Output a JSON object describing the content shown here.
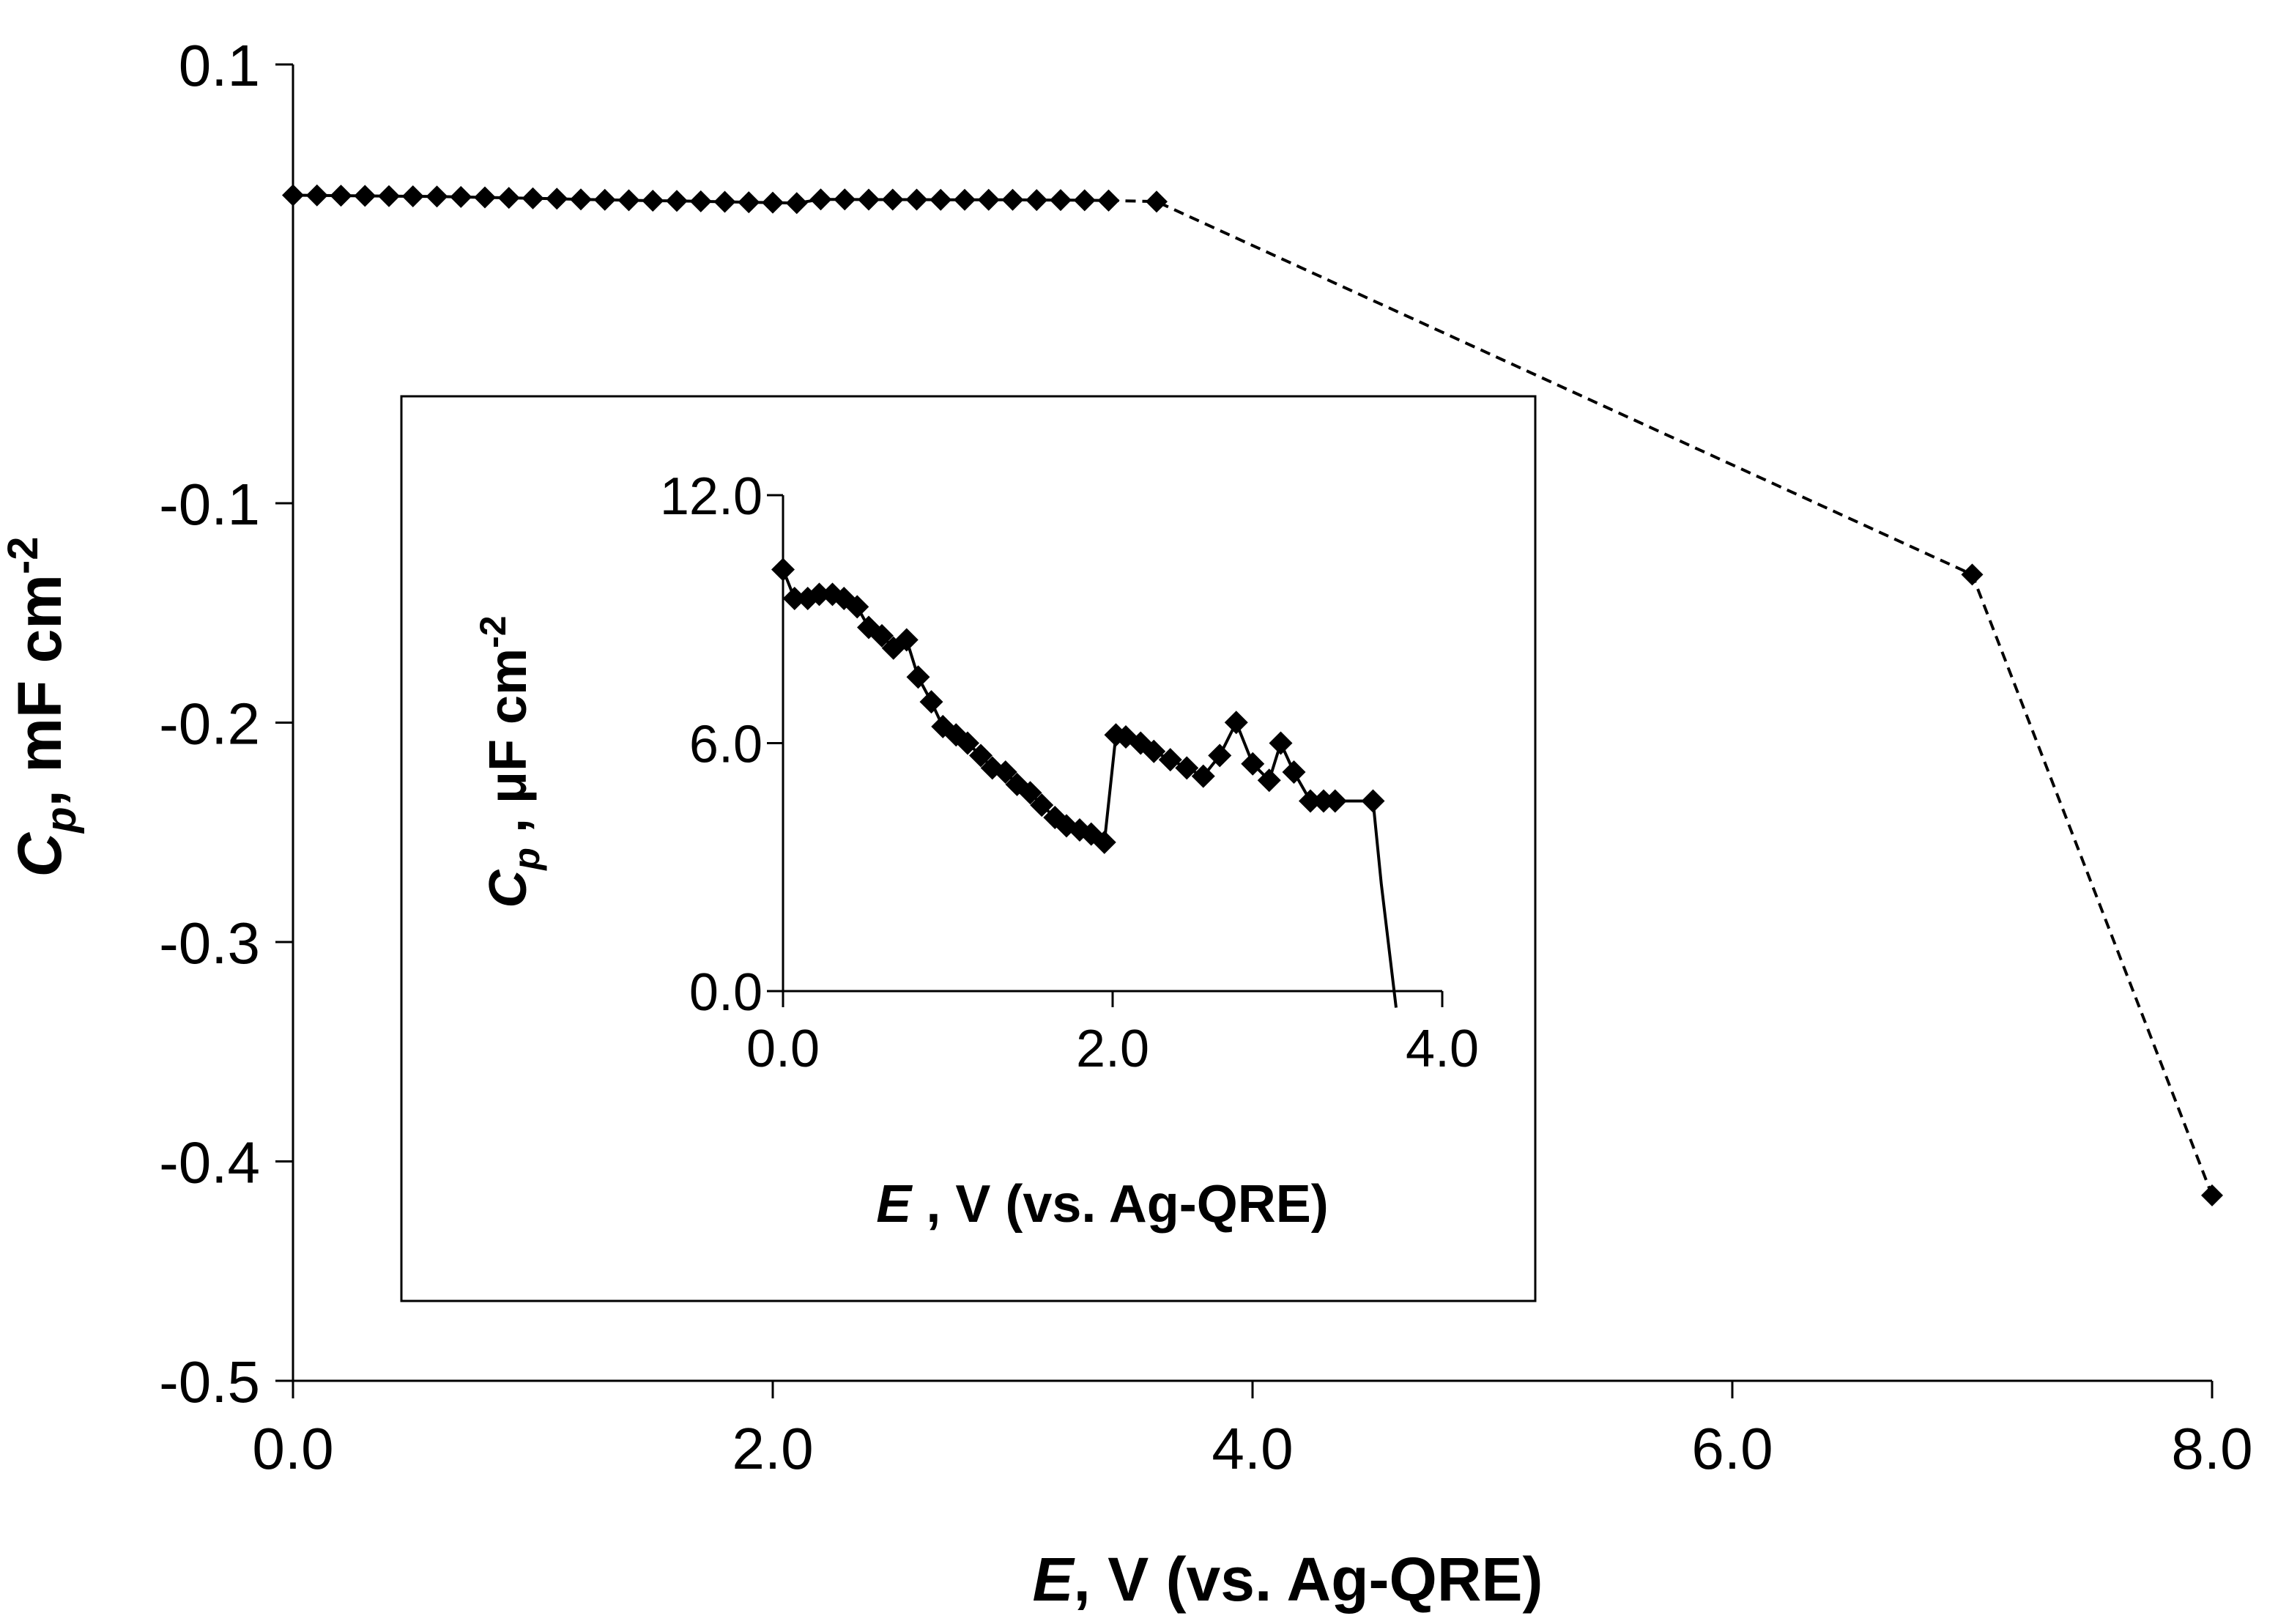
{
  "chart_data": [
    {
      "type": "line",
      "name": "main",
      "xlim": [
        0,
        8
      ],
      "ylim": [
        -0.5,
        0.1
      ],
      "xticks": [
        "0.0",
        "2.0",
        "4.0",
        "6.0",
        "8.0"
      ],
      "yticks": [
        "0.1",
        "-0.1",
        "-0.2",
        "-0.3",
        "-0.4",
        "-0.5"
      ],
      "xlabel": {
        "var": "E",
        "rest": ", V (vs. Ag-QRE)"
      },
      "ylabel": {
        "var": "C",
        "sub": "p",
        "unit": ", mF cm",
        "sup": "-2"
      },
      "series": [
        {
          "name": "Cp",
          "marker": "diamond",
          "line": "solid",
          "x": [
            0.0,
            0.1,
            0.2,
            0.3,
            0.4,
            0.5,
            0.6,
            0.7,
            0.8,
            0.9,
            1.0,
            1.1,
            1.2,
            1.3,
            1.4,
            1.5,
            1.6,
            1.7,
            1.8,
            1.9,
            2.0,
            2.1,
            2.2,
            2.3,
            2.4,
            2.5,
            2.6,
            2.7,
            2.8,
            2.9,
            3.0,
            3.1,
            3.2,
            3.3,
            3.4
          ],
          "y": [
            0.0404,
            0.0403,
            0.0402,
            0.0401,
            0.04,
            0.0399,
            0.0398,
            0.0396,
            0.0394,
            0.0392,
            0.039,
            0.0388,
            0.0385,
            0.0383,
            0.0381,
            0.0379,
            0.0378,
            0.0376,
            0.0374,
            0.0372,
            0.037,
            0.0368,
            0.0385,
            0.0385,
            0.0384,
            0.0384,
            0.0384,
            0.0383,
            0.0383,
            0.0383,
            0.0383,
            0.0382,
            0.0382,
            0.0381,
            0.038
          ]
        },
        {
          "name": "Cp-extended",
          "marker": "diamond",
          "line": "dashed",
          "x": [
            3.4,
            3.6,
            7.0,
            8.0
          ],
          "y": [
            0.038,
            0.0375,
            -0.1325,
            -0.4155
          ]
        }
      ]
    },
    {
      "type": "line",
      "name": "inset",
      "xlim": [
        0,
        4
      ],
      "ylim": [
        0,
        12
      ],
      "xticks": [
        "0.0",
        "2.0",
        "4.0"
      ],
      "yticks": [
        "12.0",
        "6.0",
        "0.0"
      ],
      "xlabel": {
        "var": "E",
        "rest": " , V (vs. Ag-QRE)"
      },
      "ylabel": {
        "var": "C",
        "sub": "p",
        "unit": " , μF cm",
        "sup": "-2"
      },
      "series": [
        {
          "name": "Cp-inset",
          "marker": "diamond",
          "line": "solid",
          "x": [
            0.0,
            0.07,
            0.15,
            0.22,
            0.3,
            0.37,
            0.45,
            0.52,
            0.6,
            0.67,
            0.75,
            0.82,
            0.9,
            0.97,
            1.05,
            1.12,
            1.2,
            1.27,
            1.35,
            1.42,
            1.5,
            1.57,
            1.65,
            1.72,
            1.8,
            1.87,
            1.95,
            2.02,
            2.08,
            2.17,
            2.25,
            2.35,
            2.45,
            2.55,
            2.65,
            2.75,
            2.85,
            2.95,
            3.02,
            3.1,
            3.2,
            3.28,
            3.35,
            3.58
          ],
          "y": [
            10.2,
            9.5,
            9.5,
            9.6,
            9.6,
            9.5,
            9.3,
            8.8,
            8.6,
            8.3,
            8.5,
            7.6,
            7.0,
            6.4,
            6.2,
            6.0,
            5.7,
            5.4,
            5.3,
            5.0,
            4.8,
            4.5,
            4.2,
            4.0,
            3.9,
            3.8,
            3.6,
            6.2,
            6.15,
            6.0,
            5.8,
            5.6,
            5.4,
            5.2,
            5.7,
            6.5,
            5.5,
            5.1,
            6.0,
            5.3,
            4.6,
            4.6,
            4.6,
            4.6
          ]
        }
      ],
      "tail": {
        "x": [
          3.58,
          3.63,
          3.72
        ],
        "y": [
          4.6,
          2.6,
          -0.4
        ]
      }
    }
  ]
}
